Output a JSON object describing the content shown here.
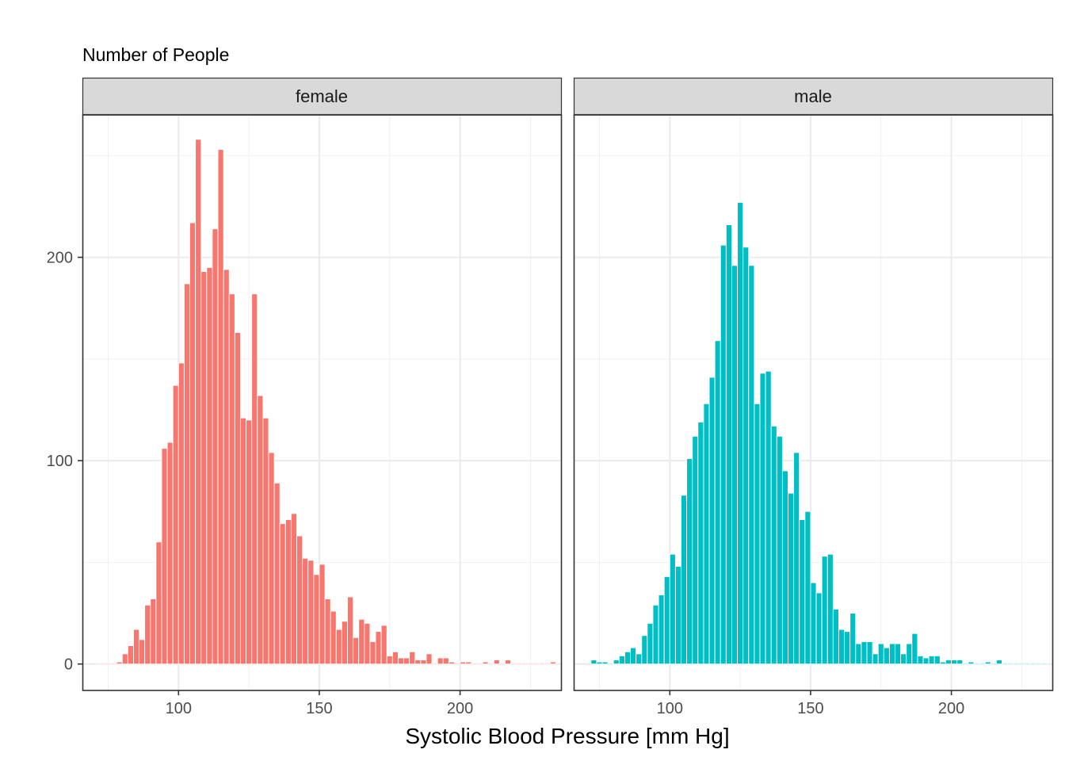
{
  "chart_data": {
    "type": "bar",
    "ylabel": "Number of People",
    "xlabel": "Systolic Blood Pressure [mm Hg]",
    "xlim": [
      66,
      236
    ],
    "ylim": [
      -13,
      270
    ],
    "x_ticks": [
      100,
      150,
      200
    ],
    "y_ticks": [
      0,
      100,
      200
    ],
    "bin_start": 72,
    "bin_width": 2,
    "grid": true,
    "panels": [
      {
        "name": "female",
        "color": "#F8766D",
        "counts": [
          0,
          0,
          0,
          1,
          5,
          9,
          17,
          12,
          29,
          32,
          60,
          106,
          109,
          137,
          148,
          187,
          217,
          258,
          193,
          195,
          214,
          253,
          194,
          182,
          163,
          121,
          120,
          182,
          132,
          121,
          104,
          89,
          69,
          71,
          74,
          63,
          52,
          51,
          44,
          49,
          32,
          26,
          17,
          21,
          33,
          13,
          22,
          20,
          11,
          16,
          19,
          4,
          6,
          3,
          3,
          6,
          2,
          2,
          5,
          0,
          3,
          3,
          1,
          0,
          1,
          1,
          0,
          0,
          1,
          0,
          2,
          0,
          2,
          0,
          0,
          0,
          0,
          0,
          0,
          0,
          1
        ]
      },
      {
        "name": "male",
        "color": "#00BFC4",
        "counts": [
          2,
          1,
          1,
          0,
          2,
          4,
          6,
          8,
          5,
          14,
          20,
          29,
          34,
          43,
          54,
          48,
          83,
          101,
          112,
          119,
          128,
          141,
          159,
          206,
          216,
          196,
          227,
          205,
          196,
          128,
          143,
          144,
          117,
          112,
          95,
          84,
          104,
          71,
          75,
          40,
          35,
          53,
          54,
          27,
          17,
          16,
          25,
          10,
          11,
          11,
          5,
          10,
          8,
          10,
          10,
          5,
          10,
          15,
          4,
          3,
          4,
          4,
          1,
          2,
          2,
          2,
          0,
          1,
          0,
          0,
          1,
          0,
          2,
          0,
          0,
          0,
          0,
          0,
          0,
          0,
          0
        ]
      }
    ]
  }
}
